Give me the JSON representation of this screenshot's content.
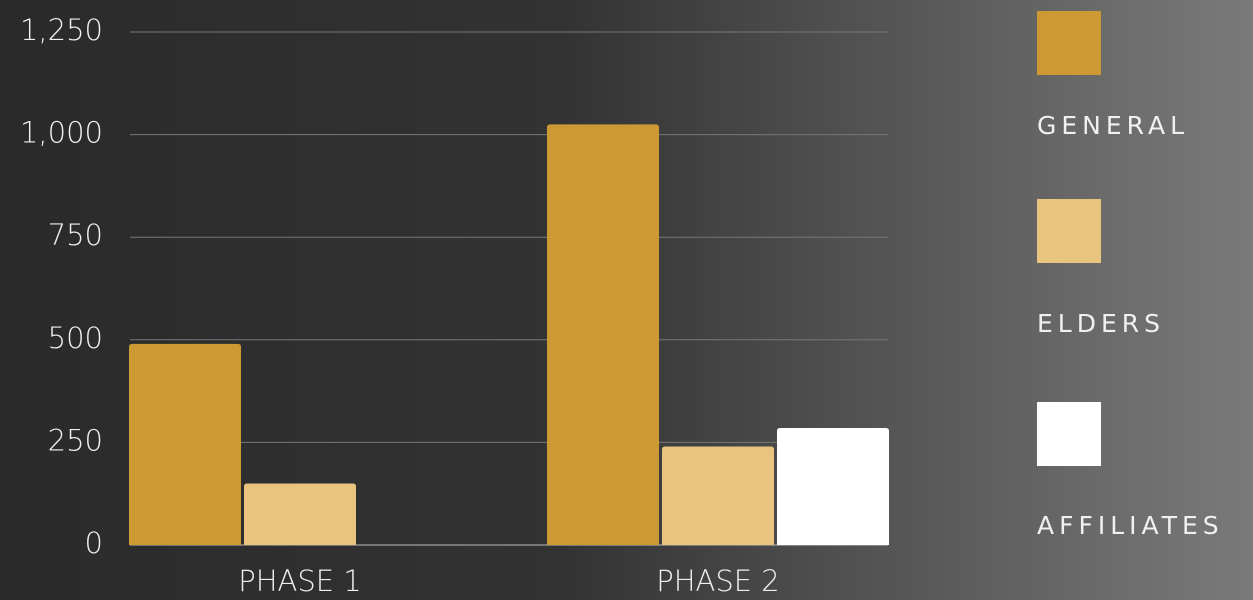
{
  "chart_data": {
    "type": "bar",
    "categories": [
      "PHASE 1",
      "PHASE 2"
    ],
    "series": [
      {
        "name": "GENERAL",
        "color": "#cc9933",
        "values": [
          490,
          1025
        ]
      },
      {
        "name": "ELDERS",
        "color": "#e8c47e",
        "values": [
          150,
          240
        ]
      },
      {
        "name": "AFFILIATES",
        "color": "#ffffff",
        "values": [
          null,
          285
        ]
      }
    ],
    "ylim": [
      0,
      1250
    ],
    "yticks": [
      0,
      250,
      500,
      750,
      {
        "value": 1000,
        "label": "1,000"
      },
      {
        "value": 1250,
        "label": "1,250"
      }
    ],
    "grid": true,
    "legend": "right"
  }
}
